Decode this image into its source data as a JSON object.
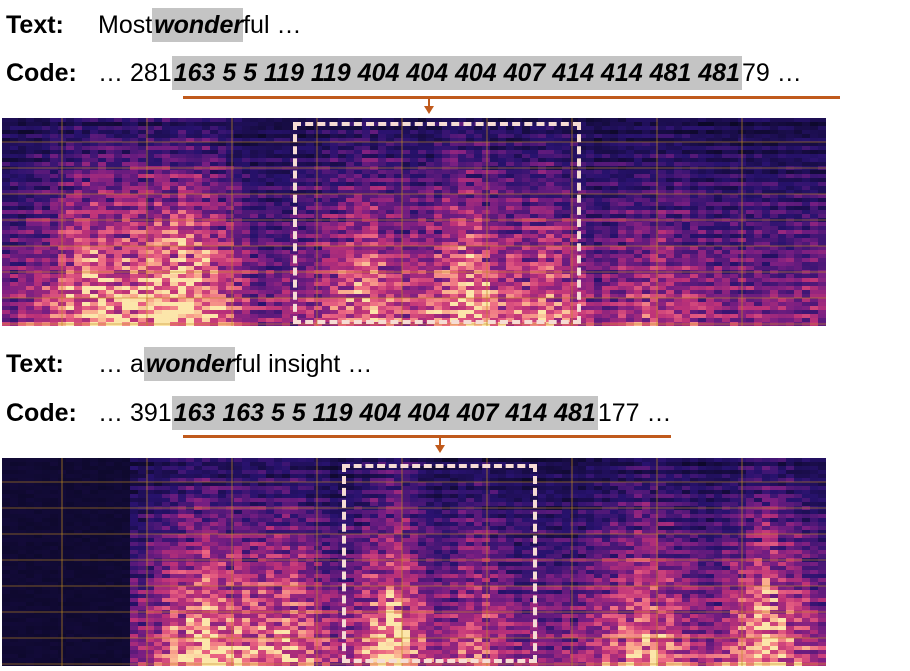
{
  "example1": {
    "text_label": "Text:",
    "text_prefix": "Most ",
    "text_highlight": "wonder",
    "text_suffix": "ful …",
    "code_label": "Code:",
    "code_prefix": "… 281 ",
    "code_highlight": "163 5 5 119 119 404 404 404 407 414 414 481 481",
    "code_suffix": " 79 …"
  },
  "example2": {
    "text_label": "Text:",
    "text_prefix": "… a ",
    "text_highlight": "wonder",
    "text_suffix": "ful insight …",
    "code_label": "Code:",
    "code_prefix": "… 391 ",
    "code_highlight": "163 163 5 5 119 404 404 407 414 481",
    "code_suffix": " 177 …"
  },
  "colors": {
    "highlight": "#c4c4c4",
    "underline": "#c05a1c",
    "dashed_box": "#f6dcd4",
    "spectrogram_low": "#0d0829",
    "spectrogram_mid": "#b5367a",
    "spectrogram_high": "#fcd9a0"
  }
}
